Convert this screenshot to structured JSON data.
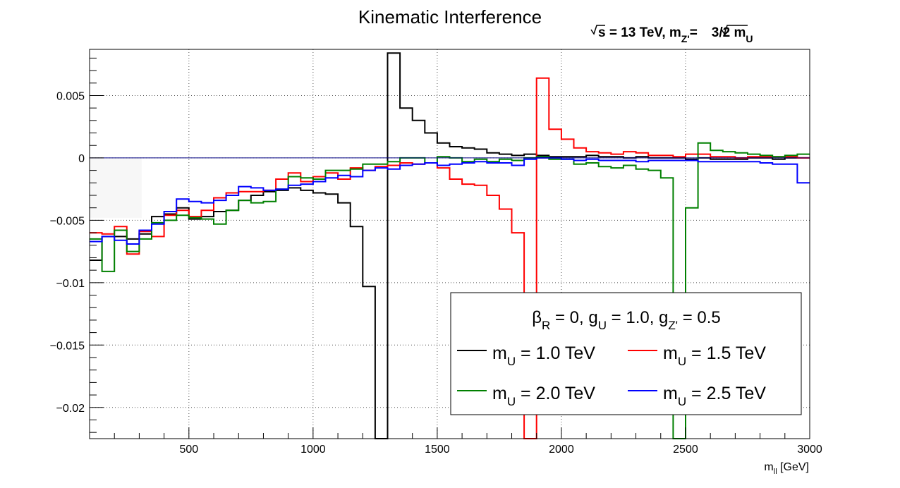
{
  "chart_data": {
    "type": "line",
    "title": "Kinematic Interference",
    "subtitle": {
      "sqrt_s": "s",
      "energy": " = 13 TeV, m",
      "zp_sub": "Z'",
      "eq": "=",
      "ratio": "3/2",
      "mu_m": " m",
      "mu_sub": "U"
    },
    "xlabel": {
      "main": "m",
      "sub": "ll",
      "unit": " [GeV]"
    },
    "ylabel": "",
    "xlim": [
      100,
      3000
    ],
    "ylim": [
      -0.0225,
      0.0087
    ],
    "xticks": [
      500,
      1000,
      1500,
      2000,
      2500,
      3000
    ],
    "xtick_labels": [
      "500",
      "1000",
      "1500",
      "2000",
      "2500",
      "3000"
    ],
    "yticks": [
      0.005,
      0,
      -0.005,
      -0.01,
      -0.015,
      -0.02
    ],
    "ytick_labels": [
      "0.005",
      "0",
      "−0.005",
      "−0.01",
      "−0.015",
      "−0.02"
    ],
    "grid": true,
    "legend_position": "bottom-right",
    "legend": {
      "header": {
        "beta": "β",
        "beta_sub": "R",
        "a": " = 0, g",
        "gu_sub": "U",
        "b": " = 1.0, g",
        "gz_sub": "Z'",
        "c": " = 0.5"
      },
      "unit": " TeV"
    },
    "bin_width": 50,
    "x": [
      100,
      150,
      200,
      250,
      300,
      350,
      400,
      450,
      500,
      550,
      600,
      650,
      700,
      750,
      800,
      850,
      900,
      950,
      1000,
      1050,
      1100,
      1150,
      1200,
      1250,
      1300,
      1350,
      1400,
      1450,
      1500,
      1550,
      1600,
      1650,
      1700,
      1750,
      1800,
      1850,
      1900,
      1950,
      2000,
      2050,
      2100,
      2150,
      2200,
      2250,
      2300,
      2350,
      2400,
      2450,
      2500,
      2550,
      2600,
      2650,
      2700,
      2750,
      2800,
      2850,
      2900,
      2950
    ],
    "series": [
      {
        "name_main": "m",
        "name_sub": "U",
        "name_value": " = 1.0",
        "color": "#000000",
        "values": [
          -0.0082,
          -0.0063,
          -0.0063,
          -0.0065,
          -0.0061,
          -0.0047,
          -0.0045,
          -0.004,
          -0.0049,
          -0.0047,
          -0.0043,
          -0.0042,
          -0.0034,
          -0.003,
          -0.0027,
          -0.0026,
          -0.0024,
          -0.0026,
          -0.0028,
          -0.0029,
          -0.0036,
          -0.0055,
          -0.0103,
          -0.0225,
          0.0084,
          0.004,
          0.003,
          0.002,
          0.0012,
          0.0009,
          0.0008,
          0.0007,
          0.0004,
          0.0003,
          0.0002,
          0.0003,
          0.0002,
          0.0001,
          0.0001,
          0.0001,
          0.0002,
          0.0001,
          0.0001,
          0.0,
          0.0001,
          0.0,
          0.0,
          0.0,
          -0.0001,
          0.0,
          -0.0001,
          -0.0001,
          -0.0001,
          0.0,
          0.0,
          -0.0001,
          0.0,
          0.0
        ]
      },
      {
        "name_main": "m",
        "name_sub": "U",
        "name_value": " = 1.5",
        "color": "#ff0000",
        "values": [
          -0.006,
          -0.0061,
          -0.0055,
          -0.0077,
          -0.0059,
          -0.0063,
          -0.0046,
          -0.0042,
          -0.0047,
          -0.0042,
          -0.0032,
          -0.0028,
          -0.0027,
          -0.0027,
          -0.0026,
          -0.0017,
          -0.0012,
          -0.0019,
          -0.0015,
          -0.0012,
          -0.0017,
          -0.0008,
          -0.001,
          -0.0007,
          -0.0006,
          -0.0004,
          -0.0005,
          -0.0004,
          -0.0008,
          -0.0017,
          -0.0021,
          -0.0022,
          -0.003,
          -0.0041,
          -0.006,
          -0.0225,
          0.0064,
          0.0023,
          0.0015,
          0.0008,
          0.0005,
          0.0004,
          0.0003,
          0.0005,
          0.0004,
          0.0002,
          0.0002,
          0.0001,
          0.0003,
          0.0003,
          0.0001,
          0.0001,
          0.0,
          0.0001,
          0.0001,
          0.0001,
          0.0001,
          0.0
        ]
      },
      {
        "name_main": "m",
        "name_sub": "U",
        "name_value": " = 2.0",
        "color": "#008000",
        "values": [
          -0.0065,
          -0.0091,
          -0.0058,
          -0.0075,
          -0.0065,
          -0.0052,
          -0.005,
          -0.0046,
          -0.0048,
          -0.0049,
          -0.0053,
          -0.0042,
          -0.0034,
          -0.0036,
          -0.0035,
          -0.0025,
          -0.0015,
          -0.0016,
          -0.0017,
          -0.001,
          -0.001,
          -0.0009,
          -0.0005,
          -0.0005,
          -0.0003,
          0.0,
          0.0,
          -0.0004,
          0.0001,
          0.0,
          -0.0003,
          -0.0001,
          -0.0003,
          -0.0001,
          -0.0002,
          0.0,
          0.0001,
          -0.0001,
          -0.0001,
          -0.0005,
          -0.0004,
          -0.0007,
          -0.0008,
          -0.0006,
          -0.0009,
          -0.001,
          -0.0016,
          -0.0225,
          -0.004,
          0.0012,
          0.0006,
          0.0005,
          0.0004,
          0.0003,
          0.0002,
          0.0001,
          0.0002,
          0.0003
        ]
      },
      {
        "name_main": "m",
        "name_sub": "U",
        "name_value": " = 2.5",
        "color": "#0000ff",
        "values": [
          -0.0067,
          -0.0063,
          -0.0066,
          -0.0069,
          -0.0058,
          -0.0053,
          -0.0043,
          -0.0033,
          -0.0035,
          -0.0036,
          -0.0034,
          -0.003,
          -0.0023,
          -0.0024,
          -0.0026,
          -0.0025,
          -0.0022,
          -0.0021,
          -0.0019,
          -0.0016,
          -0.0014,
          -0.0015,
          -0.001,
          -0.0008,
          -0.0009,
          -0.0006,
          -0.0005,
          -0.0004,
          -0.0006,
          -0.0005,
          -0.0004,
          -0.0003,
          -0.0004,
          -0.0004,
          -0.0006,
          -0.0001,
          0.0,
          0.0,
          -0.0001,
          -0.0002,
          -0.0001,
          -0.0002,
          -0.0002,
          -0.0002,
          -0.0003,
          -0.0002,
          -0.0002,
          -0.0002,
          -0.0002,
          -0.0003,
          -0.0003,
          -0.0003,
          -0.0003,
          -0.0003,
          -0.0004,
          -0.0005,
          -0.0005,
          -0.002
        ]
      }
    ]
  }
}
